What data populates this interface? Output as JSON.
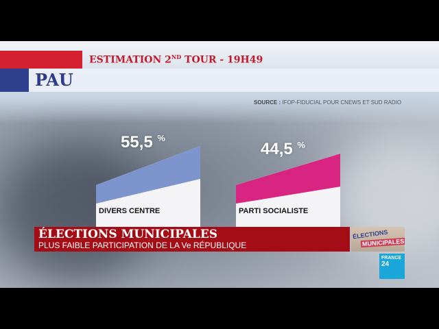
{
  "header": {
    "title_main": "ESTIMATION 2",
    "title_sup": "ND",
    "title_rest": " TOUR - 19H49",
    "city": "PAU",
    "source_label": "SOURCE :",
    "source_text": " IFOP-FIDUCIAL POUR CNEWS ET SUD RADIO"
  },
  "chart_data": {
    "type": "bar",
    "categories": [
      "DIVERS CENTRE",
      "PARTI SOCIALISTE"
    ],
    "values": [
      55.5,
      44.5
    ],
    "value_labels": [
      "55,5",
      "44,5"
    ],
    "unit": "%",
    "colors": [
      "#7d95cc",
      "#d92582"
    ]
  },
  "banner": {
    "title": "ÉLECTIONS MUNICIPALES",
    "subtitle": "PLUS FAIBLE PARTICIPATION DE LA Ve RÉPUBLIQUE",
    "thumb_line1": "ÉLECTIONS",
    "thumb_line2": "MUNICIPALES"
  },
  "logo": {
    "line1": "FRANCE",
    "line2": "24"
  }
}
